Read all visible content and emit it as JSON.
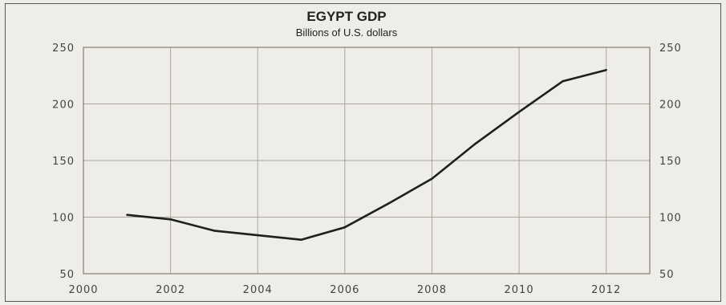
{
  "chart_data": {
    "type": "line",
    "title": "EGYPT GDP",
    "subtitle": "Billions of U.S. dollars",
    "xlabel": "",
    "ylabel": "",
    "xlim": [
      2000,
      2013
    ],
    "ylim": [
      50,
      250
    ],
    "x_ticks": [
      2000,
      2002,
      2004,
      2006,
      2008,
      2010,
      2012
    ],
    "y_ticks": [
      50,
      100,
      150,
      200,
      250
    ],
    "y_axis_sides": [
      "left",
      "right"
    ],
    "grid": true,
    "legend": "none",
    "series": [
      {
        "x": [
          2001,
          2002,
          2003,
          2004,
          2005,
          2006,
          2007,
          2008,
          2009,
          2010,
          2011,
          2012
        ],
        "y": [
          102,
          98,
          88,
          84,
          80,
          91,
          112,
          134,
          165,
          193,
          220,
          230
        ],
        "color": "#1f1f1f"
      }
    ]
  }
}
